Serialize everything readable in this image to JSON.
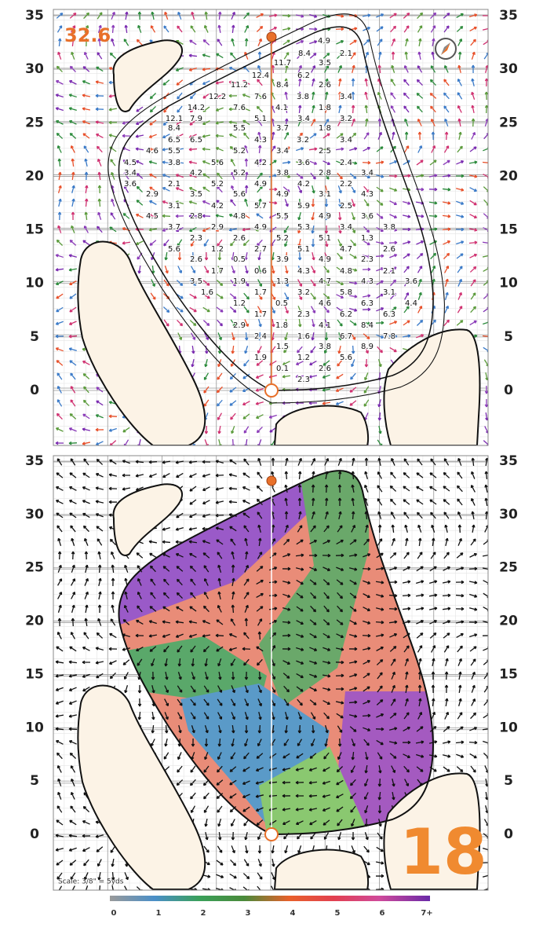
{
  "axis_ticks": [
    0,
    5,
    10,
    15,
    20,
    25,
    30,
    35
  ],
  "top_panel": {
    "elevation_label": "32.6",
    "slope_labels": [
      4.9,
      8.4,
      2.1,
      11.7,
      3.5,
      12.4,
      6.2,
      11.2,
      8.4,
      2.6,
      12.2,
      7.6,
      3.8,
      3.4,
      14.2,
      7.6,
      4.1,
      1.8,
      12.1,
      7.9,
      5.1,
      3.4,
      3.2,
      8.4,
      5.5,
      3.7,
      1.8,
      6.5,
      6.5,
      4.3,
      3.2,
      3.4,
      4.6,
      5.5,
      5.2,
      3.4,
      2.5,
      4.5,
      3.8,
      5.6,
      4.2,
      3.6,
      2.4,
      3.4,
      4.2,
      5.2,
      3.8,
      2.8,
      3.4,
      3.6,
      2.1,
      5.2,
      4.9,
      4.2,
      2.2,
      2.9,
      3.5,
      5.6,
      4.9,
      3.1,
      4.3,
      3.1,
      4.2,
      5.7,
      5.9,
      2.5,
      4.5,
      2.8,
      4.8,
      5.5,
      4.9,
      3.6,
      3.7,
      2.9,
      4.9,
      5.3,
      3.4,
      3.8,
      2.3,
      2.6,
      5.2,
      5.1,
      1.3,
      5.6,
      1.2,
      2.7,
      5.1,
      4.7,
      2.6,
      2.6,
      0.5,
      3.9,
      4.9,
      2.3,
      1.7,
      0.6,
      4.3,
      4.8,
      2.1,
      3.5,
      1.9,
      1.3,
      4.7,
      4.3,
      3.6,
      1.6,
      1.7,
      3.2,
      5.8,
      3.1,
      1.2,
      0.5,
      4.6,
      6.3,
      4.4,
      1.7,
      2.3,
      6.2,
      6.3,
      2.9,
      1.8,
      4.1,
      8.4,
      2.4,
      1.6,
      6.7,
      7.8,
      1.5,
      3.8,
      8.9,
      1.9,
      1.2,
      5.6,
      0.1,
      2.6,
      2.3
    ]
  },
  "bottom_panel": {
    "hole_number": "18",
    "scale_note": "Scale: 3/8\" = 5yds"
  },
  "legend": {
    "labels": [
      0,
      1,
      2,
      3,
      4,
      5,
      6,
      "7+"
    ]
  }
}
